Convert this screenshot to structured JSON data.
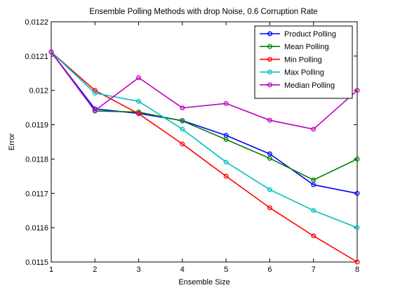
{
  "chart_data": {
    "type": "line",
    "title": "Ensemble Polling Methods with drop Noise, 0.6 Corruption Rate",
    "xlabel": "Ensemble Size",
    "ylabel": "Error",
    "xlim": [
      1,
      8
    ],
    "ylim": [
      0.0115,
      0.0122
    ],
    "x_ticks": [
      1,
      2,
      3,
      4,
      5,
      6,
      7,
      8
    ],
    "y_ticks": [
      "0.0115",
      "0.0116",
      "0.0117",
      "0.0118",
      "0.0119",
      "0.012",
      "0.0121",
      "0.0122"
    ],
    "grid": false,
    "legend_position": "top-right",
    "x": [
      1,
      2,
      3,
      4,
      5,
      6,
      7,
      8
    ],
    "series": [
      {
        "name": "Product Polling",
        "color": "#0000ff",
        "values": [
          0.012112,
          0.011946,
          0.011933,
          0.011912,
          0.011869,
          0.011815,
          0.011725,
          0.0117
        ]
      },
      {
        "name": "Mean Polling",
        "color": "#008000",
        "values": [
          0.012112,
          0.01194,
          0.011937,
          0.011911,
          0.011857,
          0.011802,
          0.011739,
          0.0118
        ]
      },
      {
        "name": "Min Polling",
        "color": "#ff0000",
        "values": [
          0.012112,
          0.012,
          0.011932,
          0.011844,
          0.01175,
          0.011658,
          0.011576,
          0.0115
        ]
      },
      {
        "name": "Max Polling",
        "color": "#00bfbf",
        "values": [
          0.012112,
          0.011992,
          0.011968,
          0.011887,
          0.011791,
          0.011711,
          0.01165,
          0.0116
        ]
      },
      {
        "name": "Median Polling",
        "color": "#bf00bf",
        "values": [
          0.012112,
          0.011941,
          0.012037,
          0.011949,
          0.011962,
          0.011913,
          0.011887,
          0.012
        ]
      }
    ]
  }
}
